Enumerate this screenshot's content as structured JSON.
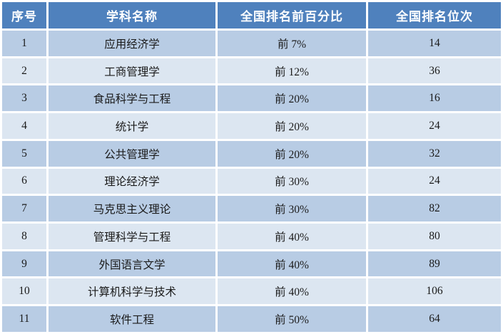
{
  "colors": {
    "header_bg": "#4f81bd",
    "header_text": "#ffffff",
    "band_a": "#b8cce4",
    "band_b": "#dce6f1",
    "divider": "#ffffff",
    "body_text": "#1a1a1a"
  },
  "table": {
    "columns": [
      {
        "key": "index",
        "label": "序号"
      },
      {
        "key": "name",
        "label": "学科名称"
      },
      {
        "key": "percent",
        "label": "全国排名前百分比"
      },
      {
        "key": "rank",
        "label": "全国排名位次"
      }
    ],
    "rows": [
      {
        "index": "1",
        "name": "应用经济学",
        "percent": "前 7%",
        "rank": "14"
      },
      {
        "index": "2",
        "name": "工商管理学",
        "percent": "前 12%",
        "rank": "36"
      },
      {
        "index": "3",
        "name": "食品科学与工程",
        "percent": "前 20%",
        "rank": "16"
      },
      {
        "index": "4",
        "name": "统计学",
        "percent": "前 20%",
        "rank": "24"
      },
      {
        "index": "5",
        "name": "公共管理学",
        "percent": "前 20%",
        "rank": "32"
      },
      {
        "index": "6",
        "name": "理论经济学",
        "percent": "前 30%",
        "rank": "24"
      },
      {
        "index": "7",
        "name": "马克思主义理论",
        "percent": "前 30%",
        "rank": "82"
      },
      {
        "index": "8",
        "name": "管理科学与工程",
        "percent": "前 40%",
        "rank": "80"
      },
      {
        "index": "9",
        "name": "外国语言文学",
        "percent": "前 40%",
        "rank": "89"
      },
      {
        "index": "10",
        "name": "计算机科学与技术",
        "percent": "前 40%",
        "rank": "106"
      },
      {
        "index": "11",
        "name": "软件工程",
        "percent": "前 50%",
        "rank": "64"
      }
    ]
  }
}
